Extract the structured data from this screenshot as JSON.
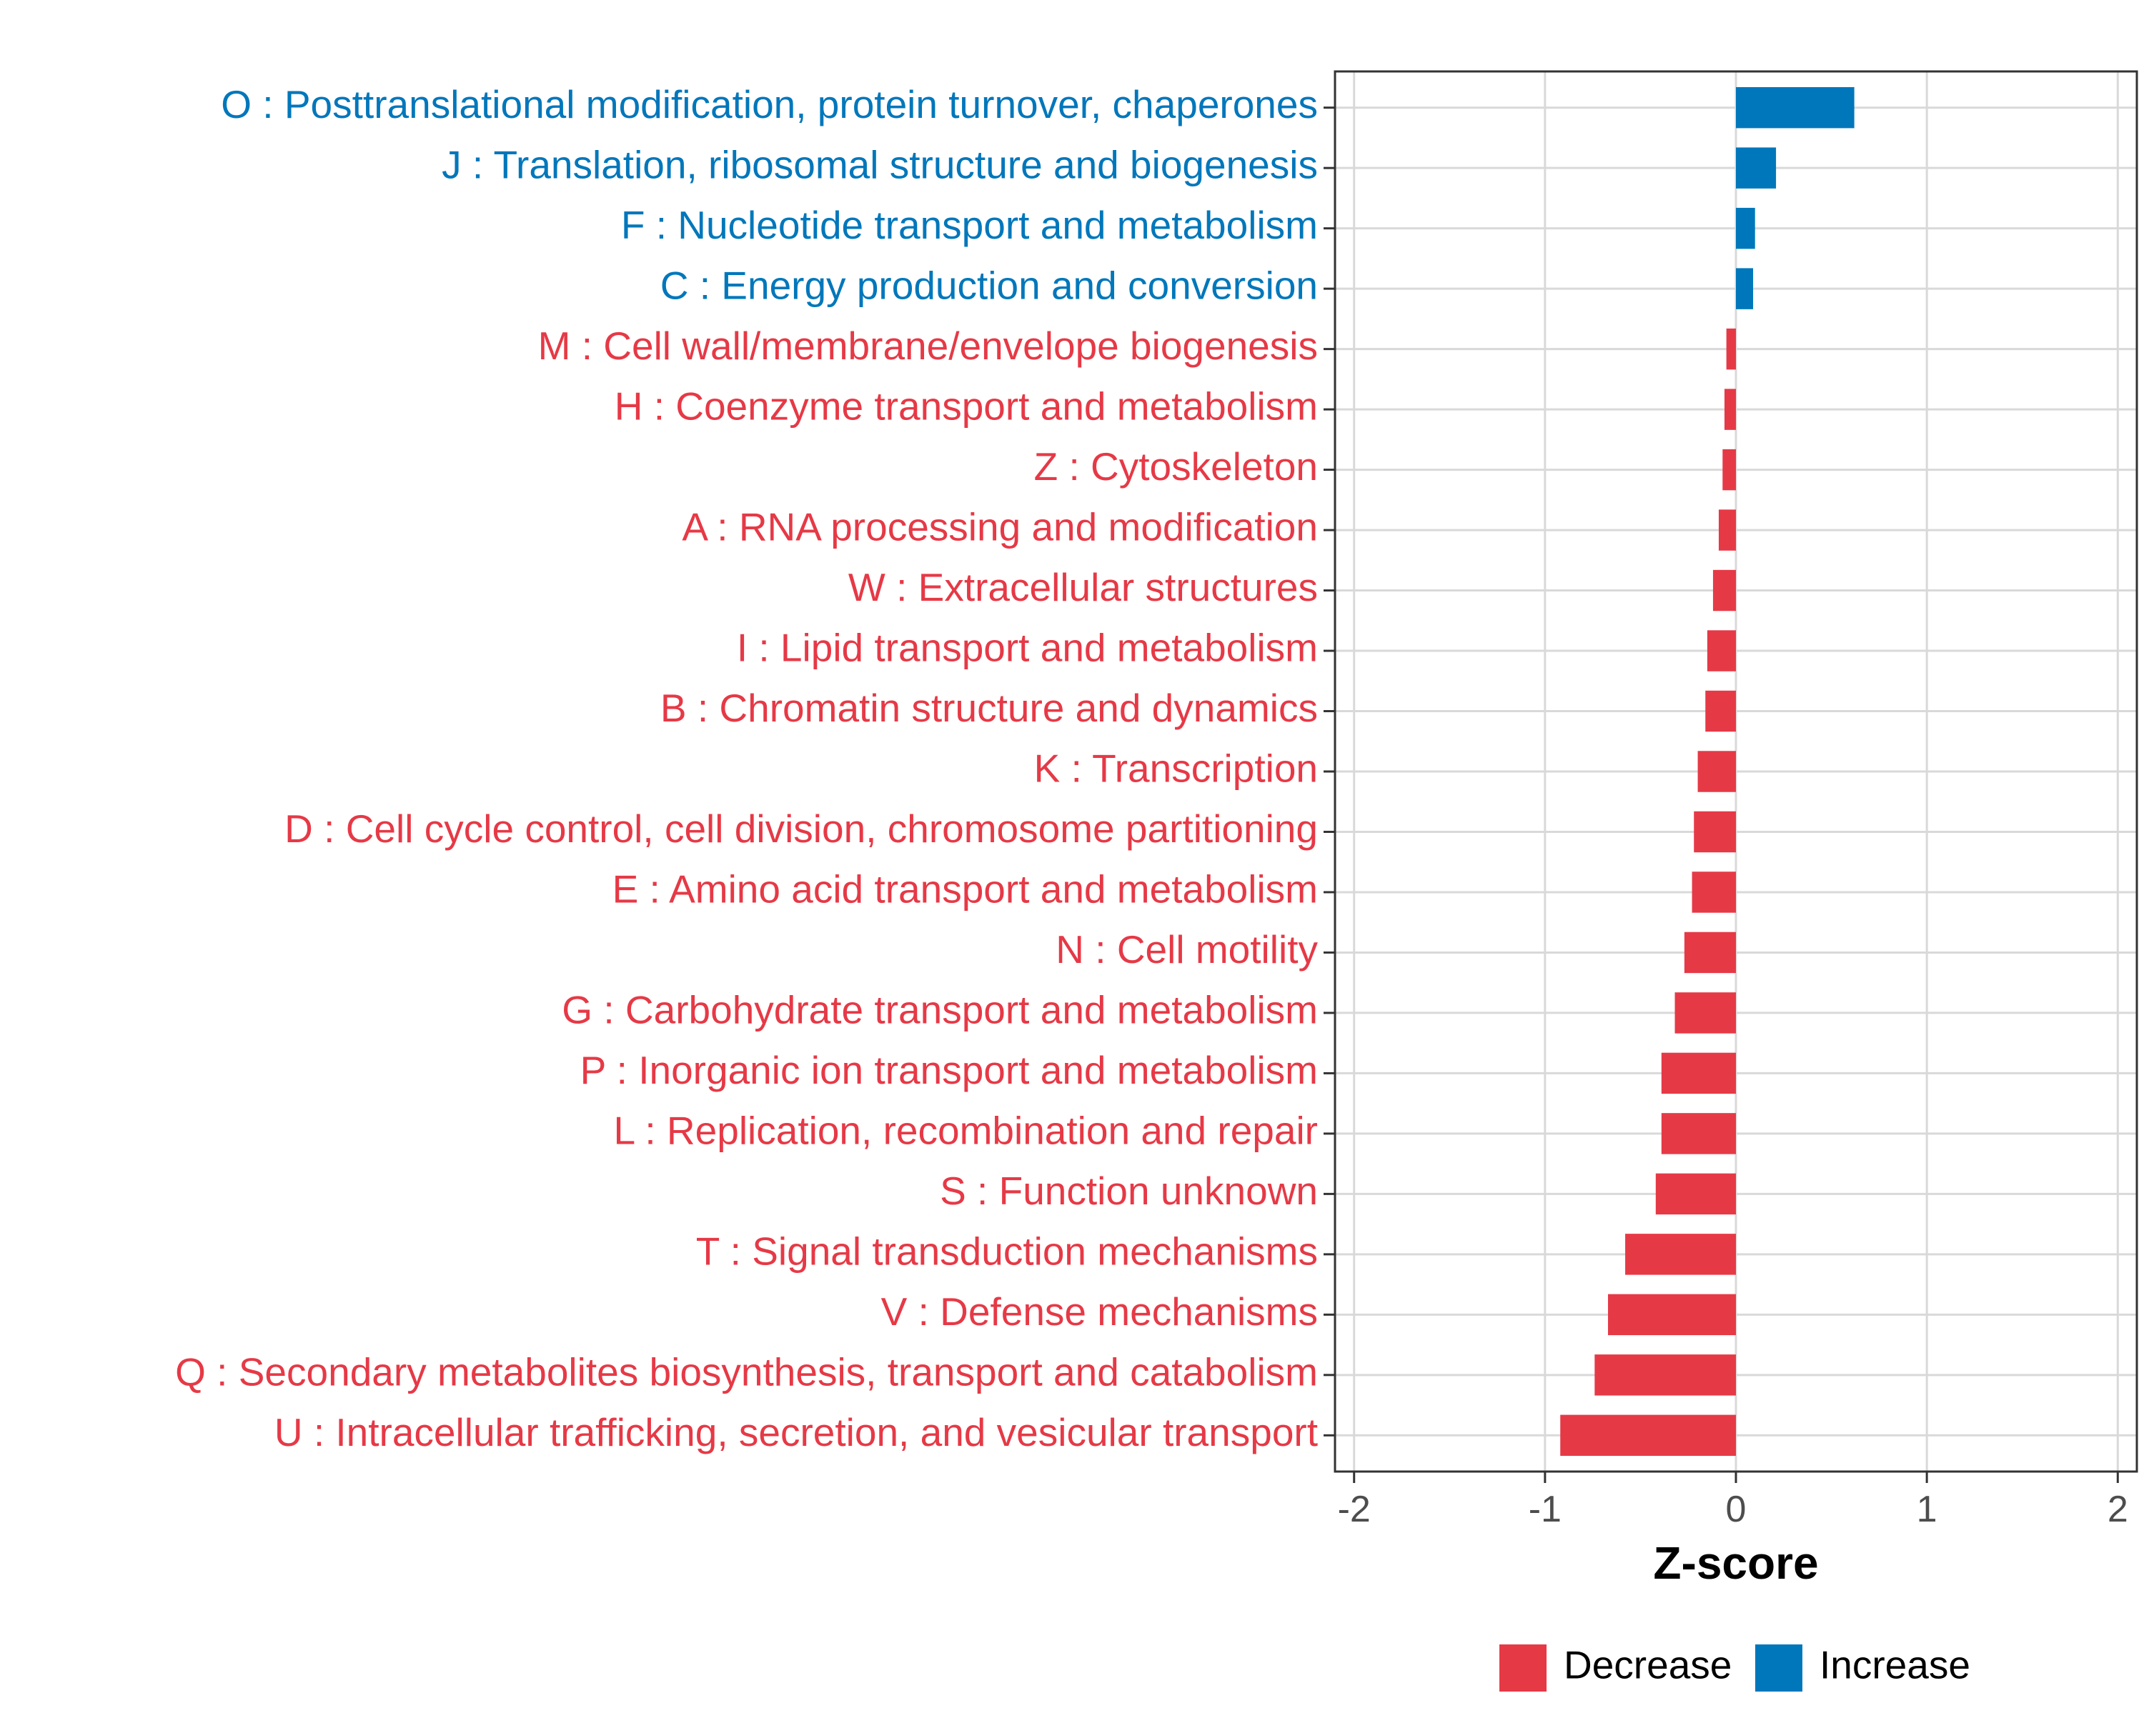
{
  "chart_data": {
    "type": "bar",
    "orientation": "horizontal",
    "title": "",
    "xlabel": "Z-score",
    "ylabel": "",
    "xlim": [
      -2.1,
      2.1
    ],
    "x_ticks": [
      -2,
      -1,
      0,
      1,
      2
    ],
    "x_tick_labels": [
      "-2",
      "-1",
      "0",
      "1",
      "2"
    ],
    "grid": true,
    "legend_position": "bottom",
    "categories": [
      "O : Posttranslational modification, protein turnover, chaperones",
      "J : Translation, ribosomal structure and biogenesis",
      "F : Nucleotide transport and metabolism",
      "C : Energy production and conversion",
      "M : Cell wall/membrane/envelope biogenesis",
      "H : Coenzyme transport and metabolism",
      "Z : Cytoskeleton",
      "A : RNA processing and modification",
      "W : Extracellular structures",
      "I : Lipid transport and metabolism",
      "B : Chromatin structure and dynamics",
      "K : Transcription",
      "D : Cell cycle control, cell division, chromosome partitioning",
      "E : Amino acid transport and metabolism",
      "N : Cell motility",
      "G : Carbohydrate transport and metabolism",
      "P : Inorganic ion transport and metabolism",
      "L : Replication, recombination and repair",
      "S : Function unknown",
      "T : Signal transduction mechanisms",
      "V : Defense mechanisms",
      "Q : Secondary metabolites biosynthesis, transport and catabolism",
      "U : Intracellular trafficking, secretion, and vesicular transport"
    ],
    "values": [
      0.62,
      0.21,
      0.1,
      0.09,
      -0.05,
      -0.06,
      -0.07,
      -0.09,
      -0.12,
      -0.15,
      -0.16,
      -0.2,
      -0.22,
      -0.23,
      -0.27,
      -0.32,
      -0.39,
      -0.39,
      -0.42,
      -0.58,
      -0.67,
      -0.74,
      -0.92
    ],
    "groups": [
      "Increase",
      "Increase",
      "Increase",
      "Increase",
      "Decrease",
      "Decrease",
      "Decrease",
      "Decrease",
      "Decrease",
      "Decrease",
      "Decrease",
      "Decrease",
      "Decrease",
      "Decrease",
      "Decrease",
      "Decrease",
      "Decrease",
      "Decrease",
      "Decrease",
      "Decrease",
      "Decrease",
      "Decrease",
      "Decrease"
    ],
    "legend": [
      {
        "name": "Decrease",
        "color": "#E63946"
      },
      {
        "name": "Increase",
        "color": "#0077BB"
      }
    ]
  }
}
